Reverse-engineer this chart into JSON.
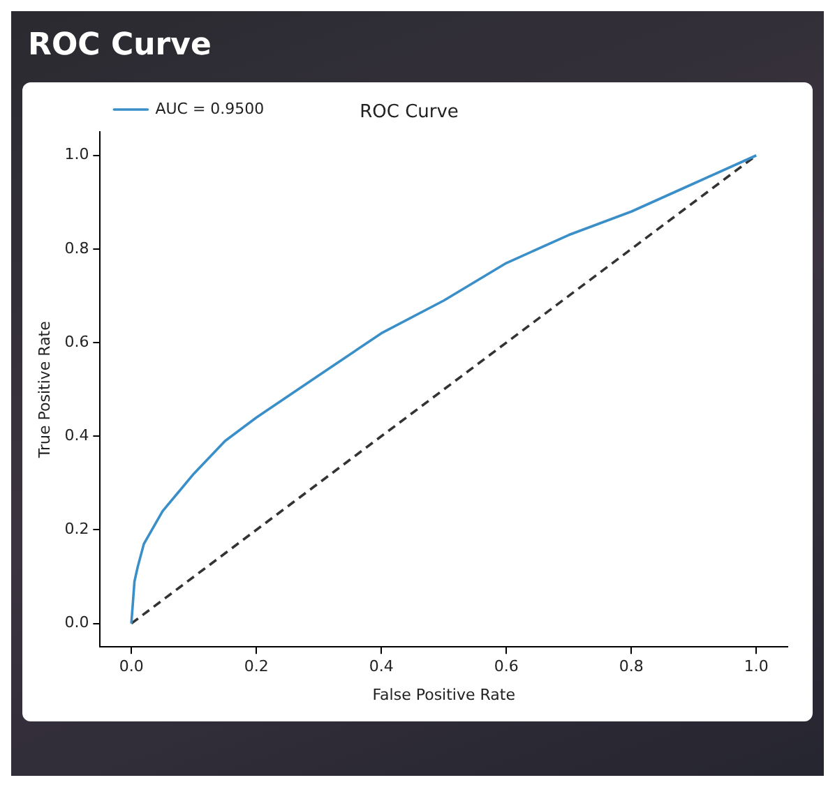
{
  "chart_data": {
    "type": "line",
    "title": "ROC Curve",
    "xlabel": "False Positive Rate",
    "ylabel": "True Positive Rate",
    "annotations": [
      "ROC Curve"
    ],
    "series": [
      {
        "name": "AUC = 0.9500",
        "color": "#3a8fc9",
        "line_style": "solid",
        "x": [
          0,
          0.005,
          0.01,
          0.02,
          0.05,
          0.1,
          0.15,
          0.2,
          0.3,
          0.4,
          0.5,
          0.6,
          0.7,
          0.8,
          0.9,
          1.0
        ],
        "values": [
          0,
          0.09,
          0.12,
          0.17,
          0.24,
          0.32,
          0.39,
          0.44,
          0.53,
          0.62,
          0.69,
          0.77,
          0.83,
          0.88,
          0.94,
          1.0
        ]
      },
      {
        "color": "#333333",
        "line_style": "dashed",
        "x": [
          0,
          1
        ],
        "values": [
          0,
          1
        ]
      }
    ],
    "xlim": [
      -0.05,
      1.05
    ],
    "ylim": [
      -0.05,
      1.05
    ],
    "xticks": [
      {
        "value": 0,
        "label": "0.0"
      },
      {
        "value": 0.2,
        "label": "0.2"
      },
      {
        "value": 0.4,
        "label": "0.4"
      },
      {
        "value": 0.6,
        "label": "0.6"
      },
      {
        "value": 0.8,
        "label": "0.8"
      },
      {
        "value": 1,
        "label": "1.0"
      }
    ],
    "yticks": [
      {
        "value": 0,
        "label": "0.0"
      },
      {
        "value": 0.2,
        "label": "0.2"
      },
      {
        "value": 0.4,
        "label": "0.4"
      },
      {
        "value": 0.6,
        "label": "0.6"
      },
      {
        "value": 0.8,
        "label": "0.8"
      },
      {
        "value": 1,
        "label": "1.0"
      }
    ],
    "grid": false,
    "legend": "top left",
    "marker": "none"
  }
}
